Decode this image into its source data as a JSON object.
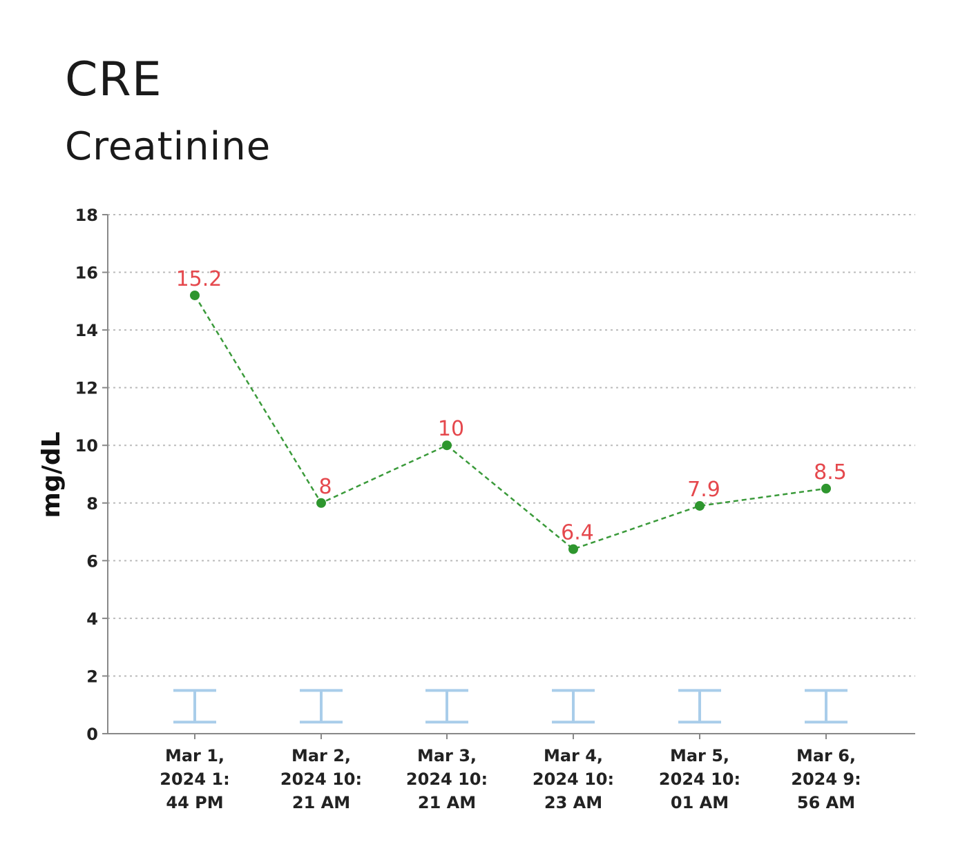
{
  "header": {
    "title": "CRE",
    "subtitle": "Creatinine"
  },
  "chart_data": {
    "type": "line",
    "ylabel": "mg/dL",
    "xlabel": "",
    "ylim": [
      0,
      18
    ],
    "yticks": [
      0,
      2,
      4,
      6,
      8,
      10,
      12,
      14,
      16,
      18
    ],
    "grid": "horizontal-dotted",
    "legend": "none",
    "categories": [
      [
        "Mar 1,",
        "2024 1:",
        "44 PM"
      ],
      [
        "Mar 2,",
        "2024 10:",
        "21 AM"
      ],
      [
        "Mar 3,",
        "2024 10:",
        "21 AM"
      ],
      [
        "Mar 4,",
        "2024 10:",
        "23 AM"
      ],
      [
        "Mar 5,",
        "2024 10:",
        "01 AM"
      ],
      [
        "Mar 6,",
        "2024 9:",
        "56 AM"
      ]
    ],
    "series": [
      {
        "values": [
          15.2,
          8,
          10,
          6.4,
          7.9,
          8.5
        ],
        "labels": [
          "15.2",
          "8",
          "10",
          "6.4",
          "7.9",
          "8.5"
        ]
      }
    ],
    "reference_range": {
      "low": 0.4,
      "high": 1.5
    },
    "colors": {
      "line": "#3a9a3a",
      "point": "#2e962e",
      "data_label": "#e5484d",
      "range_marker": "#a9cdea",
      "grid": "#bbbbbb",
      "axis": "#888888"
    }
  }
}
